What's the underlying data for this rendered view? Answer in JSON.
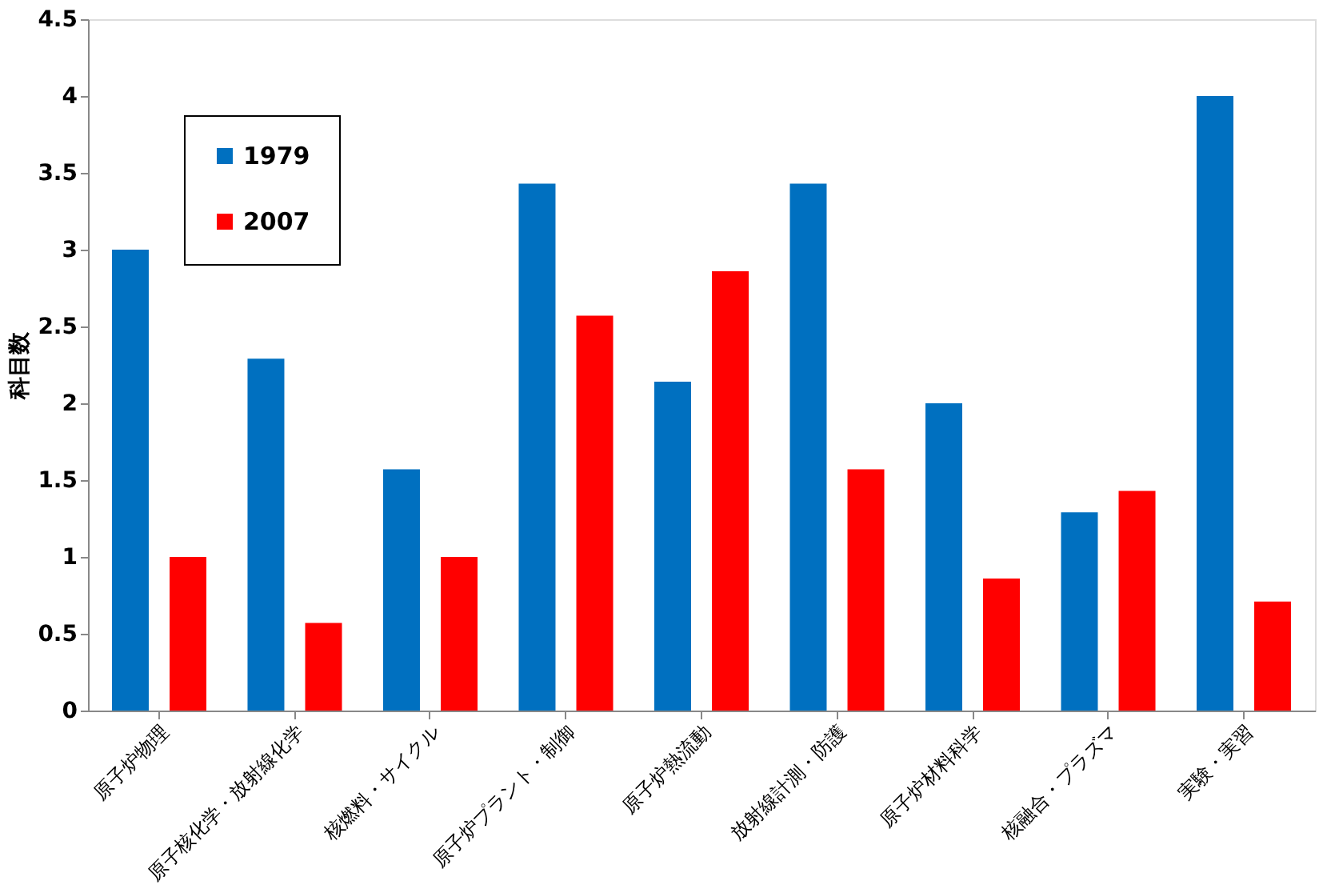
{
  "chart_data": {
    "type": "bar",
    "ylabel": "科目数",
    "categories": [
      "原子炉物理",
      "原子核化学・放射線化学",
      "核燃料・サイクル",
      "原子炉プラント・制御",
      "原子炉熱流動",
      "放射線計測・防護",
      "原子炉材料科学",
      "核融合・プラズマ",
      "実験・実習"
    ],
    "series": [
      {
        "name": "1979",
        "color": "#0070c0",
        "values": [
          3.0,
          2.29,
          1.57,
          3.43,
          2.14,
          3.43,
          2.0,
          1.29,
          4.0
        ]
      },
      {
        "name": "2007",
        "color": "#ff0000",
        "values": [
          1.0,
          0.57,
          1.0,
          2.57,
          2.86,
          1.57,
          0.86,
          1.43,
          0.71
        ]
      }
    ],
    "ylim": [
      0,
      4.5
    ],
    "yticks": [
      0,
      0.5,
      1,
      1.5,
      2,
      2.5,
      3,
      3.5,
      4,
      4.5
    ],
    "grid": false,
    "legend": "top left"
  }
}
